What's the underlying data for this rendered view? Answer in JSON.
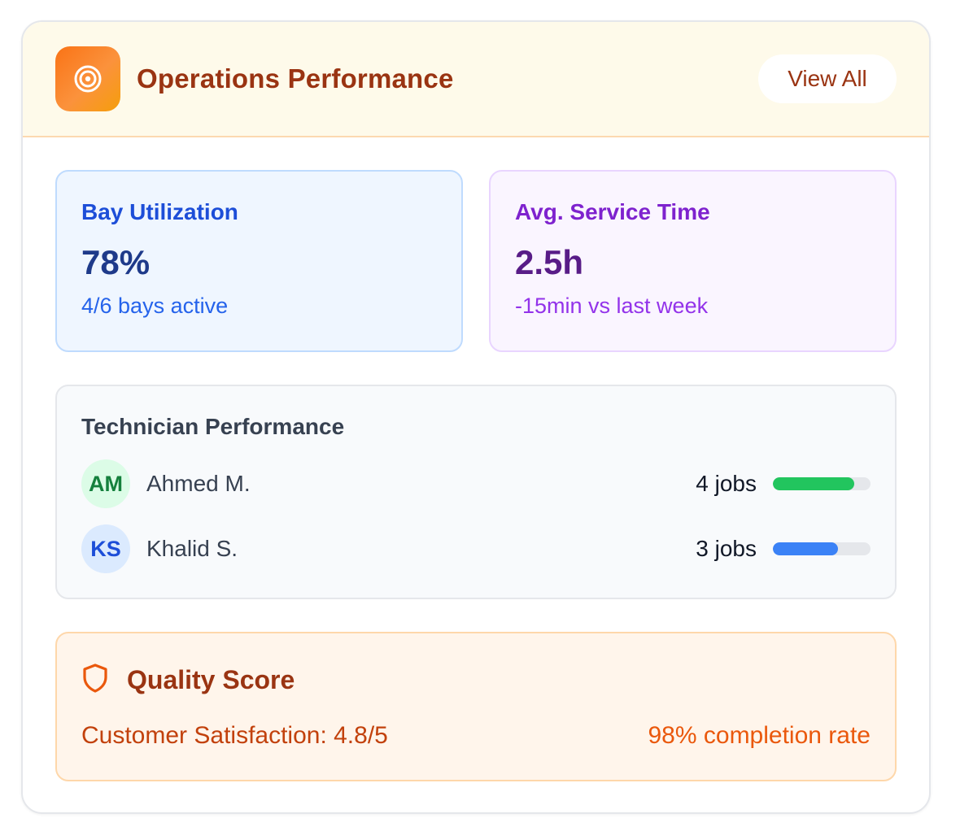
{
  "header": {
    "title": "Operations Performance",
    "icon": "target-icon",
    "view_all_label": "View All"
  },
  "stats": [
    {
      "label": "Bay Utilization",
      "value": "78%",
      "sub": "4/6 bays active",
      "color": "#1d4ed8"
    },
    {
      "label": "Avg. Service Time",
      "value": "2.5h",
      "sub": "-15min vs last week",
      "color": "#7e22ce"
    }
  ],
  "technicians": {
    "title": "Technician Performance",
    "rows": [
      {
        "initials": "AM",
        "name": "Ahmed M.",
        "jobs": "4 jobs",
        "progress": 0.83,
        "bar_color": "#22c55e"
      },
      {
        "initials": "KS",
        "name": "Khalid S.",
        "jobs": "3 jobs",
        "progress": 0.67,
        "bar_color": "#3b82f6"
      }
    ]
  },
  "quality": {
    "title": "Quality Score",
    "icon": "shield-icon",
    "satisfaction": "Customer Satisfaction: 4.8/5",
    "completion": "98% completion rate"
  },
  "colors": {
    "accent": "#f97316",
    "header_text": "#9a3412"
  }
}
